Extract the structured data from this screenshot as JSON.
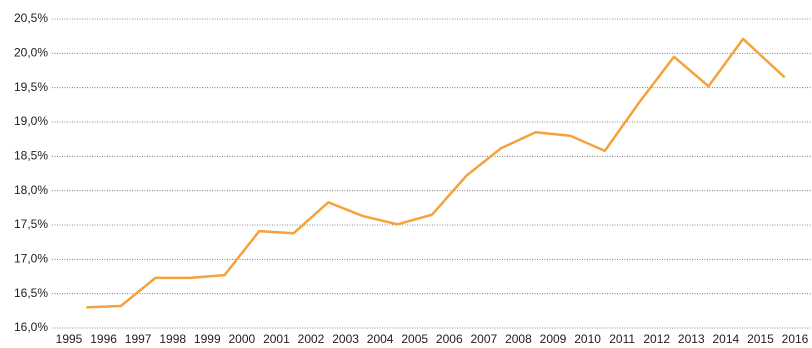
{
  "chart_data": {
    "type": "line",
    "x": [
      1995.5,
      1996.5,
      1997.5,
      1998.5,
      1999.5,
      2000.5,
      2001.5,
      2002.5,
      2003.5,
      2004.5,
      2005.5,
      2006.5,
      2007.5,
      2008.5,
      2009.5,
      2010.5,
      2011.5,
      2012.5,
      2013.5,
      2014.5,
      2015.7
    ],
    "series": [
      {
        "name": null,
        "color": "#f5a23a",
        "values": [
          16.3,
          16.32,
          16.73,
          16.73,
          16.77,
          17.41,
          17.38,
          17.83,
          17.63,
          17.51,
          17.65,
          18.22,
          18.62,
          18.85,
          18.8,
          18.58,
          19.29,
          19.95,
          19.52,
          20.21,
          19.65
        ]
      }
    ],
    "xlim": [
      1995,
      2016
    ],
    "xticks": [
      1995,
      1996,
      1997,
      1998,
      1999,
      2000,
      2001,
      2002,
      2003,
      2004,
      2005,
      2006,
      2007,
      2008,
      2009,
      2010,
      2011,
      2012,
      2013,
      2014,
      2015,
      2016
    ],
    "ylim": [
      16.0,
      20.5
    ],
    "yticks": [
      {
        "value": 16.0,
        "label": "16,0%"
      },
      {
        "value": 16.5,
        "label": "16,5%"
      },
      {
        "value": 17.0,
        "label": "17,0%"
      },
      {
        "value": 17.5,
        "label": "17,5%"
      },
      {
        "value": 18.0,
        "label": "18,0%"
      },
      {
        "value": 18.5,
        "label": "18,5%"
      },
      {
        "value": 19.0,
        "label": "19,0%"
      },
      {
        "value": 19.5,
        "label": "19,5%"
      },
      {
        "value": 20.0,
        "label": "20,0%"
      },
      {
        "value": 20.5,
        "label": "20,5%"
      }
    ],
    "grid": true
  }
}
